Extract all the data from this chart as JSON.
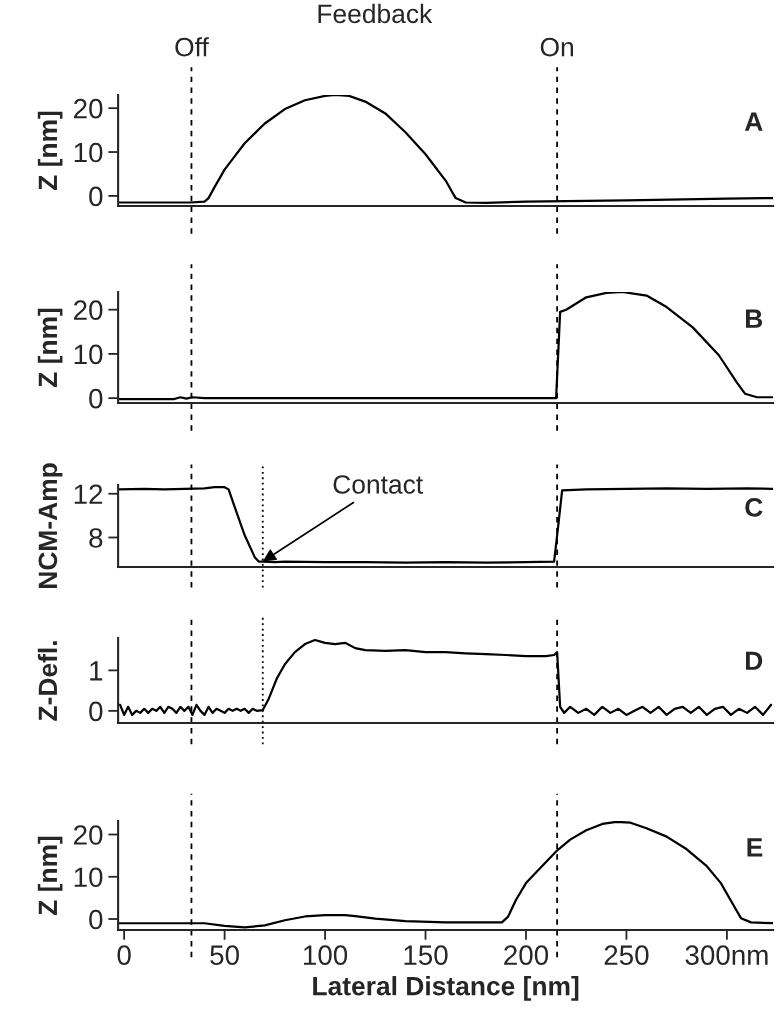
{
  "chart_data": [
    {
      "type": "line",
      "ylabel": "Z [nm]",
      "xlim": [
        -3,
        323
      ],
      "ylim": [
        -2.3,
        23
      ],
      "yticks": [
        0,
        10,
        20
      ],
      "tick_labels": "y",
      "annotations": [
        "Feedback",
        "A"
      ],
      "ref_lines": [
        {
          "axis": "x",
          "value": 33.5,
          "label": "Off",
          "line_style": "dashed"
        },
        {
          "axis": "x",
          "value": 215.5,
          "label": "On",
          "line_style": "dashed"
        }
      ],
      "series": [
        {
          "color": "#000000",
          "x": [
            -3,
            20,
            33,
            40,
            42,
            45,
            50,
            55,
            60,
            70,
            80,
            90,
            100,
            105,
            112,
            120,
            130,
            140,
            150,
            160,
            165,
            170,
            180,
            200,
            250,
            300,
            323
          ],
          "values": [
            -1.5,
            -1.5,
            -1.5,
            -1.3,
            -0.5,
            2,
            6,
            9,
            12,
            16.5,
            19.8,
            21.8,
            22.8,
            23,
            22.8,
            21.5,
            18.8,
            14.5,
            9.5,
            3.5,
            -0.5,
            -1.5,
            -1.6,
            -1.3,
            -1.0,
            -0.6,
            -0.5
          ]
        }
      ]
    },
    {
      "type": "line",
      "ylabel": "Z [nm]",
      "xlim": [
        -3,
        323
      ],
      "ylim": [
        -1.1,
        24
      ],
      "yticks": [
        0,
        10,
        20
      ],
      "tick_labels": "y",
      "annotations": [
        "B"
      ],
      "ref_lines": [
        {
          "axis": "x",
          "value": 33.5,
          "line_style": "dashed"
        },
        {
          "axis": "x",
          "value": 215.5,
          "line_style": "dashed"
        }
      ],
      "series": [
        {
          "color": "#000000",
          "x": [
            -3,
            25,
            28,
            31,
            34,
            40,
            100,
            215,
            217,
            220,
            230,
            240,
            248,
            260,
            270,
            283,
            296,
            305,
            309,
            315,
            323
          ],
          "values": [
            -0.2,
            -0.2,
            0.2,
            -0.1,
            0.2,
            0,
            0,
            0,
            19.5,
            20,
            22.8,
            23.8,
            24,
            23.2,
            20.6,
            16,
            9.7,
            3.5,
            1,
            0.2,
            0.2
          ]
        }
      ]
    },
    {
      "type": "line",
      "ylabel": "NCM-Amp",
      "xlim": [
        -3,
        323
      ],
      "ylim": [
        5.3,
        12.8
      ],
      "yticks": [
        8,
        12
      ],
      "tick_labels": "y",
      "annotations": [
        {
          "text": "Contact",
          "x": 69,
          "y": 5.8
        },
        "C"
      ],
      "ref_lines": [
        {
          "axis": "x",
          "value": 33.5,
          "line_style": "dashed"
        },
        {
          "axis": "x",
          "value": 69,
          "line_style": "dotted"
        },
        {
          "axis": "x",
          "value": 215.5,
          "line_style": "dashed"
        }
      ],
      "series": [
        {
          "color": "#000000",
          "x": [
            -3,
            10,
            20,
            30,
            40,
            45,
            50,
            52,
            55,
            60,
            65,
            67,
            69,
            75,
            80,
            100,
            120,
            140,
            160,
            180,
            200,
            214,
            216,
            218,
            230,
            250,
            270,
            290,
            310,
            323
          ],
          "values": [
            12.4,
            12.45,
            12.4,
            12.45,
            12.5,
            12.6,
            12.6,
            12.4,
            10.8,
            8.2,
            6.2,
            5.8,
            5.8,
            5.75,
            5.8,
            5.75,
            5.75,
            5.7,
            5.75,
            5.7,
            5.75,
            5.8,
            9,
            12.3,
            12.4,
            12.45,
            12.5,
            12.45,
            12.5,
            12.45
          ]
        }
      ]
    },
    {
      "type": "line",
      "ylabel": "Z-Defl.",
      "xlim": [
        -3,
        323
      ],
      "ylim": [
        -0.3,
        1.8
      ],
      "yticks": [
        0,
        1
      ],
      "tick_labels": "y",
      "annotations": [
        "D"
      ],
      "ref_lines": [
        {
          "axis": "x",
          "value": 33.5,
          "line_style": "dashed"
        },
        {
          "axis": "x",
          "value": 69,
          "line_style": "dotted"
        },
        {
          "axis": "x",
          "value": 215.5,
          "line_style": "dashed"
        }
      ],
      "series": [
        {
          "color": "#000000",
          "x": [
            -2,
            0,
            2,
            4,
            6,
            8,
            10,
            12,
            14,
            16,
            18,
            20,
            22,
            24,
            26,
            28,
            30,
            32,
            34,
            36,
            38,
            40,
            42,
            44,
            46,
            48,
            50,
            52,
            54,
            56,
            58,
            60,
            62,
            64,
            66,
            69,
            72,
            76,
            80,
            85,
            90,
            95,
            100,
            105,
            110,
            115,
            120,
            130,
            140,
            150,
            160,
            170,
            180,
            190,
            200,
            210,
            214,
            215.5,
            217,
            219,
            222,
            226,
            230,
            234,
            238,
            242,
            246,
            250,
            254,
            258,
            262,
            266,
            270,
            274,
            278,
            282,
            286,
            290,
            294,
            298,
            302,
            306,
            310,
            314,
            318,
            322
          ],
          "values": [
            0.15,
            -0.1,
            0.1,
            -0.1,
            0.0,
            -0.05,
            0.05,
            -0.05,
            0.05,
            0.0,
            0.1,
            -0.05,
            0.1,
            0.05,
            -0.05,
            0.1,
            0.0,
            0.1,
            -0.1,
            0.15,
            0.0,
            -0.1,
            0.1,
            -0.05,
            0.05,
            0.0,
            -0.05,
            0.05,
            0.0,
            0.05,
            0.0,
            0.05,
            -0.05,
            0.05,
            0.0,
            0.02,
            0.3,
            0.8,
            1.15,
            1.45,
            1.65,
            1.75,
            1.68,
            1.65,
            1.68,
            1.55,
            1.5,
            1.48,
            1.5,
            1.45,
            1.45,
            1.42,
            1.4,
            1.38,
            1.35,
            1.35,
            1.38,
            1.45,
            0.1,
            -0.05,
            0.1,
            -0.05,
            0.05,
            -0.1,
            0.1,
            -0.05,
            0.05,
            -0.1,
            0.0,
            0.1,
            -0.05,
            0.1,
            -0.1,
            0.05,
            0.1,
            -0.05,
            0.1,
            -0.1,
            0.05,
            0.1,
            -0.1,
            0.05,
            -0.05,
            0.1,
            -0.1,
            0.15
          ]
        }
      ]
    },
    {
      "type": "line",
      "xlabel": "Lateral Distance [nm]",
      "ylabel": "Z [nm]",
      "xlim": [
        -3,
        323
      ],
      "ylim": [
        -2.6,
        23.2
      ],
      "yticks": [
        0,
        10,
        20
      ],
      "xticks": [
        0,
        50,
        100,
        150,
        200,
        250,
        {
          "value": 300,
          "label": "300nm"
        }
      ],
      "annotations": [
        "E"
      ],
      "ref_lines": [
        {
          "axis": "x",
          "value": 33.5,
          "line_style": "dashed"
        },
        {
          "axis": "x",
          "value": 215.5,
          "line_style": "dashed"
        }
      ],
      "series": [
        {
          "color": "#000000",
          "x": [
            -3,
            20,
            40,
            50,
            60,
            70,
            80,
            90,
            100,
            110,
            115,
            125,
            140,
            160,
            188,
            191,
            195,
            200,
            207,
            215,
            222,
            230,
            238,
            245,
            252,
            260,
            270,
            280,
            290,
            297,
            303,
            307,
            312,
            323
          ],
          "values": [
            -1,
            -1,
            -1,
            -1.6,
            -2,
            -1.5,
            -0.3,
            0.6,
            0.9,
            0.9,
            0.7,
            0.1,
            -0.5,
            -0.8,
            -0.8,
            0.5,
            4.5,
            8.5,
            12,
            16,
            18.8,
            21,
            22.5,
            23,
            22.8,
            21.5,
            19.5,
            16.5,
            12.5,
            8.5,
            3.5,
            0.2,
            -0.8,
            -1
          ]
        }
      ]
    }
  ]
}
